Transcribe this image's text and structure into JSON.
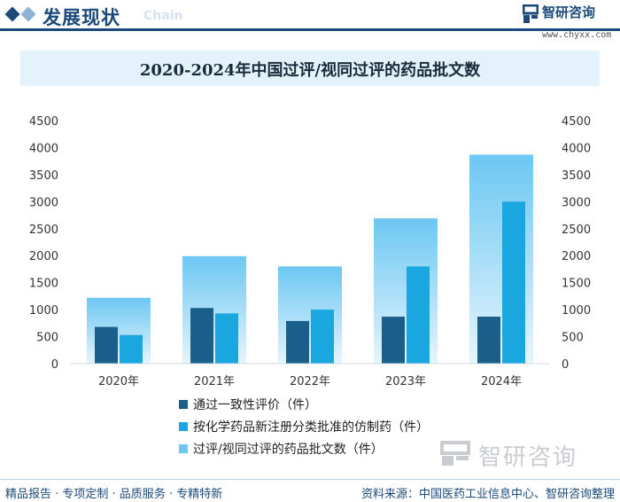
{
  "header": {
    "section_title": "发展现状",
    "section_sub": "Chain",
    "brand_name": "智研咨询",
    "brand_url": "www.chyxx.com"
  },
  "chart_data": {
    "type": "bar",
    "title": "2020-2024年中国过评/视同过评的药品批文数",
    "categories": [
      "2020年",
      "2021年",
      "2022年",
      "2023年",
      "2024年"
    ],
    "series": [
      {
        "name": "通过一致性评价（件）",
        "values": [
          680,
          1030,
          790,
          870,
          870
        ],
        "color": "#1a5f8a"
      },
      {
        "name": "按化学药品新注册分类批准的仿制药（件）",
        "values": [
          530,
          930,
          1000,
          1800,
          3000
        ],
        "color": "#1aa6df"
      },
      {
        "name": "过评/视同过评的药品批文数（件）",
        "values": [
          1220,
          1990,
          1800,
          2690,
          3870
        ],
        "color": "#6cc7f2"
      }
    ],
    "y_ticks_left": [
      "0",
      "500",
      "1000",
      "1500",
      "2000",
      "2500",
      "3000",
      "3500",
      "4000",
      "4500"
    ],
    "y_ticks_right": [
      "0",
      "500",
      "1000",
      "1500",
      "2000",
      "2500",
      "3000",
      "3500",
      "4000",
      "4500"
    ],
    "ylim": [
      0,
      4500
    ]
  },
  "watermark": "智研咨询",
  "footer": {
    "left": "精品报告 · 专项定制 · 品质服务 · 专精特新",
    "right": "资料来源：中国医药工业信息中心、智研咨询整理"
  }
}
